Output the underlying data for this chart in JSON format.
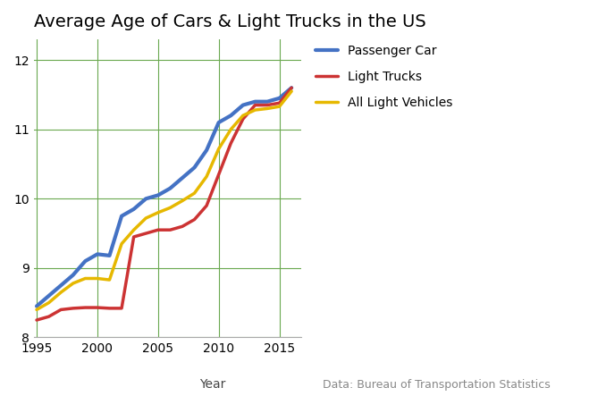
{
  "title": "Average Age of Cars & Light Trucks in the US",
  "xlabel": "Year",
  "source_text": "Data: Bureau of Transportation Statistics",
  "ylim": [
    8,
    12.3
  ],
  "xlim": [
    1994.8,
    2016.8
  ],
  "yticks": [
    8,
    9,
    10,
    11,
    12
  ],
  "xticks": [
    1995,
    2000,
    2005,
    2010,
    2015
  ],
  "grid_color": "#6aa84f",
  "background_color": "#ffffff",
  "source_color": "#888888",
  "xlabel_color": "#444444",
  "series": [
    {
      "key": "passenger_car",
      "label": "Passenger Car",
      "color": "#4472c4",
      "linewidth": 3.0,
      "years": [
        1995,
        1996,
        1997,
        1998,
        1999,
        2000,
        2001,
        2002,
        2003,
        2004,
        2005,
        2006,
        2007,
        2008,
        2009,
        2010,
        2011,
        2012,
        2013,
        2014,
        2015,
        2016
      ],
      "values": [
        8.45,
        8.6,
        8.75,
        8.9,
        9.1,
        9.2,
        9.18,
        9.75,
        9.85,
        10.0,
        10.05,
        10.15,
        10.3,
        10.45,
        10.7,
        11.1,
        11.2,
        11.35,
        11.4,
        11.4,
        11.45,
        11.6
      ]
    },
    {
      "key": "light_trucks",
      "label": "Light Trucks",
      "color": "#cc3333",
      "linewidth": 2.5,
      "years": [
        1995,
        1996,
        1997,
        1998,
        1999,
        2000,
        2001,
        2002,
        2003,
        2004,
        2005,
        2006,
        2007,
        2008,
        2009,
        2010,
        2011,
        2012,
        2013,
        2014,
        2015,
        2016
      ],
      "values": [
        8.25,
        8.3,
        8.4,
        8.42,
        8.43,
        8.43,
        8.42,
        8.42,
        9.45,
        9.5,
        9.55,
        9.55,
        9.6,
        9.7,
        9.9,
        10.35,
        10.8,
        11.15,
        11.35,
        11.35,
        11.38,
        11.6
      ]
    },
    {
      "key": "all_light_vehicles",
      "label": "All Light Vehicles",
      "color": "#e6b800",
      "linewidth": 2.5,
      "years": [
        1995,
        1996,
        1997,
        1998,
        1999,
        2000,
        2001,
        2002,
        2003,
        2004,
        2005,
        2006,
        2007,
        2008,
        2009,
        2010,
        2011,
        2012,
        2013,
        2014,
        2015,
        2016
      ],
      "values": [
        8.4,
        8.5,
        8.65,
        8.78,
        8.85,
        8.85,
        8.83,
        9.35,
        9.55,
        9.72,
        9.8,
        9.87,
        9.97,
        10.08,
        10.32,
        10.72,
        11.0,
        11.2,
        11.28,
        11.3,
        11.33,
        11.55
      ]
    }
  ]
}
